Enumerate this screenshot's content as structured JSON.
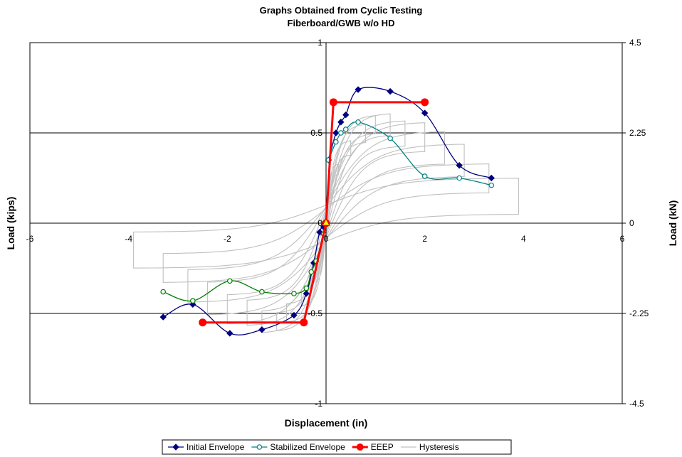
{
  "chart_data": {
    "type": "scatter",
    "title": "Graphs Obtained from Cyclic Testing",
    "subtitle": "Fiberboard/GWB w/o HD",
    "xlabel": "Displacement (in)",
    "ylabel": "Load (kips)",
    "y2label": "Load (kN)",
    "xlim": [
      -6,
      6
    ],
    "ylim": [
      -1,
      1
    ],
    "y2lim": [
      -4.5,
      4.5
    ],
    "x_ticks": [
      "-6",
      "-4",
      "-2",
      "0",
      "2",
      "4",
      "6"
    ],
    "y_ticks": [
      "-1",
      "-0.5",
      "0",
      "0.5",
      "1"
    ],
    "y2_ticks": [
      "-4.5",
      "-2.25",
      "0",
      "2.25",
      "4.5"
    ],
    "grid": "horizontal",
    "legend_position": "bottom",
    "series": [
      {
        "name": "Initial Envelope",
        "color": "#000080",
        "marker": "diamond",
        "x": [
          -3.3,
          -2.7,
          -1.95,
          -1.3,
          -0.65,
          -0.4,
          -0.25,
          -0.13,
          -0.05,
          0.05,
          0.2,
          0.3,
          0.4,
          0.65,
          1.3,
          2.0,
          2.7,
          3.35
        ],
        "y": [
          -0.52,
          -0.45,
          -0.61,
          -0.59,
          -0.51,
          -0.39,
          -0.22,
          -0.05,
          -0.02,
          0.35,
          0.5,
          0.56,
          0.6,
          0.74,
          0.73,
          0.61,
          0.32,
          0.25
        ]
      },
      {
        "name": "Stabilized Envelope",
        "color": "#008080",
        "marker": "circle",
        "x": [
          -3.3,
          -2.7,
          -1.95,
          -1.3,
          -0.65,
          -0.4,
          -0.3,
          -0.2,
          -0.05,
          0.05,
          0.2,
          0.3,
          0.4,
          0.65,
          1.3,
          2.0,
          2.7,
          3.35
        ],
        "y": [
          -0.38,
          -0.43,
          -0.32,
          -0.38,
          -0.39,
          -0.36,
          -0.27,
          -0.21,
          -0.06,
          0.35,
          0.45,
          0.5,
          0.52,
          0.56,
          0.47,
          0.26,
          0.25,
          0.21
        ]
      },
      {
        "name": "EEEP",
        "color": "#ff0000",
        "marker": "circle",
        "x": [
          -2.5,
          -0.45,
          0,
          0.15,
          2.0
        ],
        "y": [
          -0.55,
          -0.55,
          0,
          0.67,
          0.67
        ]
      },
      {
        "name": "Hysteresis",
        "color": "#c0c0c0",
        "marker": "none"
      }
    ]
  }
}
